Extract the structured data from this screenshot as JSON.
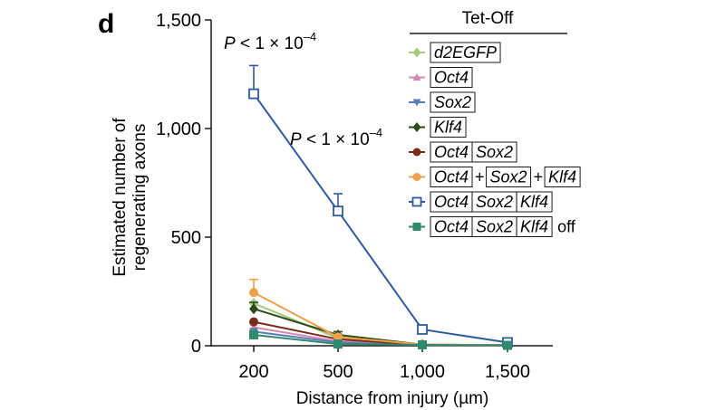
{
  "panel_label": "d",
  "chart_data": {
    "type": "line",
    "title": "",
    "xlabel": "Distance from injury (µm)",
    "ylabel_lines": [
      "Estimated number of",
      "regenerating axons"
    ],
    "categories": [
      "200",
      "500",
      "1,000",
      "1,500"
    ],
    "ylim": [
      0,
      1500
    ],
    "yticks": [
      0,
      500,
      1000,
      1500
    ],
    "ytick_labels": [
      "0",
      "500",
      "1,000",
      "1,500"
    ],
    "grid": false,
    "legend_title": "Tet-Off",
    "legend_position": "top-right",
    "annotations": [
      {
        "text": "P < 1 × 10",
        "exponent": "–4"
      },
      {
        "text": "P < 1 × 10",
        "exponent": "–4"
      }
    ],
    "series": [
      {
        "name_parts": [
          "d2EGFP"
        ],
        "suffix": "",
        "color": "#a4c97a",
        "marker": "diamond",
        "values": [
          195,
          35,
          5,
          3
        ],
        "errors": [
          0,
          0,
          0,
          0
        ]
      },
      {
        "name_parts": [
          "Oct4"
        ],
        "suffix": "",
        "color": "#d688b3",
        "marker": "triangle-up",
        "values": [
          85,
          20,
          4,
          2
        ],
        "errors": [
          0,
          0,
          0,
          0
        ]
      },
      {
        "name_parts": [
          "Sox2"
        ],
        "suffix": "",
        "color": "#5a7cb6",
        "marker": "triangle-down",
        "values": [
          65,
          15,
          3,
          2
        ],
        "errors": [
          0,
          0,
          0,
          0
        ]
      },
      {
        "name_parts": [
          "Klf4"
        ],
        "suffix": "",
        "color": "#2d4a1a",
        "marker": "diamond",
        "values": [
          170,
          50,
          5,
          3
        ],
        "errors": [
          30,
          15,
          0,
          0
        ]
      },
      {
        "name_parts": [
          "Oct4",
          "Sox2"
        ],
        "suffix": "",
        "color": "#7a2a1a",
        "marker": "circle",
        "values": [
          110,
          30,
          4,
          2
        ],
        "errors": [
          0,
          0,
          0,
          0
        ]
      },
      {
        "name_parts": [
          "Oct4",
          "+",
          "Sox2",
          "+",
          "Klf4"
        ],
        "suffix": "",
        "color": "#f0a04b",
        "marker": "circle",
        "values": [
          245,
          40,
          6,
          3
        ],
        "errors": [
          60,
          0,
          0,
          0
        ]
      },
      {
        "name_parts": [
          "Oct4",
          "Sox2",
          "Klf4"
        ],
        "suffix": "",
        "color": "#2f5b9e",
        "marker": "square-open",
        "values": [
          1160,
          620,
          75,
          15
        ],
        "errors": [
          130,
          80,
          0,
          0
        ]
      },
      {
        "name_parts": [
          "Oct4",
          "Sox2",
          "Klf4"
        ],
        "suffix": "off",
        "color": "#2e8b6e",
        "marker": "square",
        "values": [
          50,
          8,
          4,
          2
        ],
        "errors": [
          0,
          0,
          0,
          0
        ]
      }
    ]
  }
}
